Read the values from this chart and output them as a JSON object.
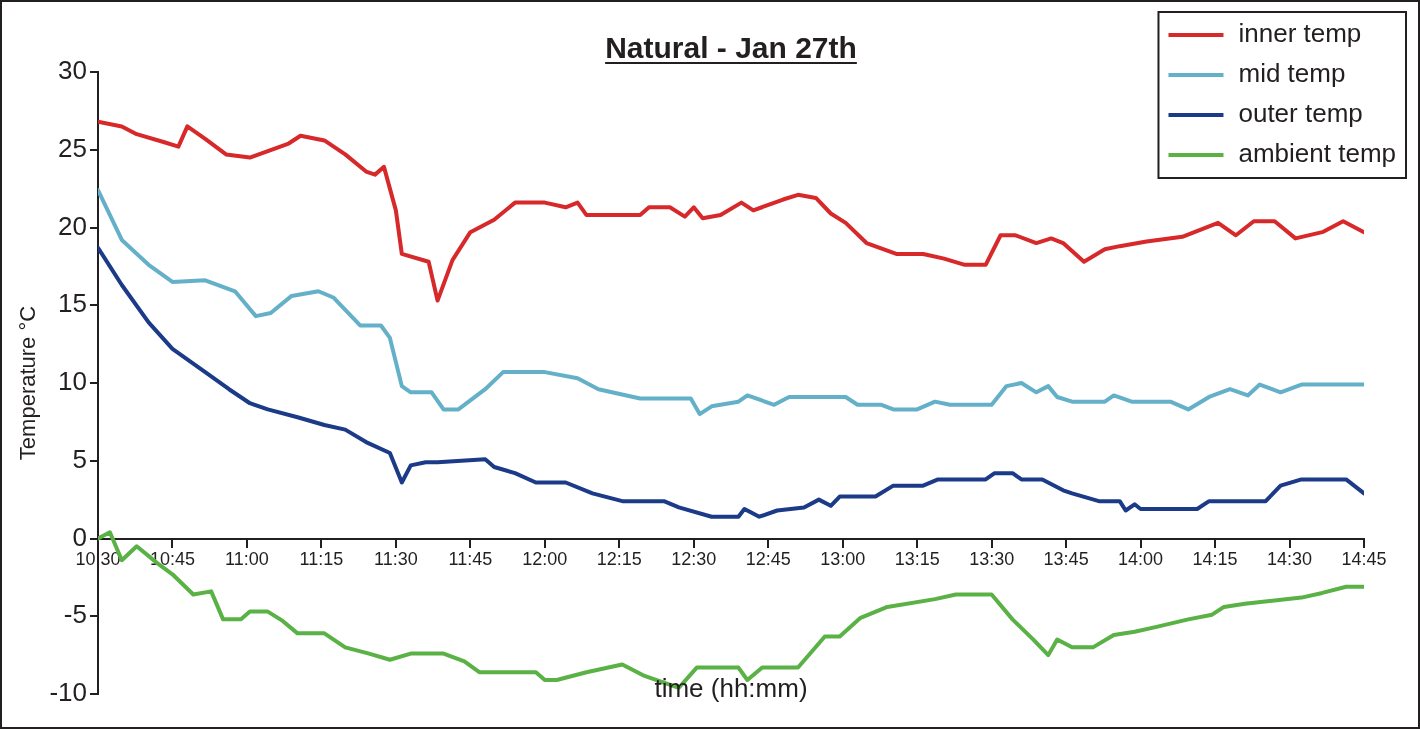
{
  "chart_data": {
    "type": "line",
    "title": "Natural - Jan 27th",
    "xlabel": "time (hh:mm)",
    "ylabel": "Temperature °C",
    "xlim": [
      10.5,
      14.75
    ],
    "xticks": [
      {
        "value": 10.5,
        "label": "10:30"
      },
      {
        "value": 10.75,
        "label": "10:45"
      },
      {
        "value": 11,
        "label": "11:00"
      },
      {
        "value": 11.25,
        "label": "11:15"
      },
      {
        "value": 11.5,
        "label": "11:30"
      },
      {
        "value": 11.75,
        "label": "11:45"
      },
      {
        "value": 12,
        "label": "12:00"
      },
      {
        "value": 12.25,
        "label": "12:15"
      },
      {
        "value": 12.5,
        "label": "12:30"
      },
      {
        "value": 12.75,
        "label": "12:45"
      },
      {
        "value": 13,
        "label": "13:00"
      },
      {
        "value": 13.25,
        "label": "13:15"
      },
      {
        "value": 13.5,
        "label": "13:30"
      },
      {
        "value": 13.75,
        "label": "13:45"
      },
      {
        "value": 14,
        "label": "14:00"
      },
      {
        "value": 14.25,
        "label": "14:15"
      },
      {
        "value": 14.5,
        "label": "14:30"
      },
      {
        "value": 14.75,
        "label": "14:45"
      }
    ],
    "ylim": [
      -10,
      30
    ],
    "yticks": [
      -10,
      -5,
      0,
      5,
      10,
      15,
      20,
      25,
      30
    ],
    "grid": false,
    "legend": "top right",
    "marker": "none",
    "line_style": "solid",
    "series": [
      {
        "name": "inner temp",
        "color": "#d7282a",
        "x": [
          10.5,
          10.58,
          10.63,
          10.72,
          10.77,
          10.8,
          10.86,
          10.93,
          11.01,
          11.14,
          11.18,
          11.26,
          11.33,
          11.4,
          11.43,
          11.46,
          11.5,
          11.52,
          11.61,
          11.64,
          11.69,
          11.75,
          11.83,
          11.9,
          12.0,
          12.07,
          12.11,
          12.14,
          12.32,
          12.35,
          12.42,
          12.47,
          12.5,
          12.53,
          12.59,
          12.66,
          12.7,
          12.8,
          12.85,
          12.91,
          12.96,
          13.01,
          13.08,
          13.18,
          13.27,
          13.34,
          13.41,
          13.48,
          13.53,
          13.58,
          13.65,
          13.7,
          13.74,
          13.81,
          13.88,
          13.93,
          14.02,
          14.14,
          14.26,
          14.32,
          14.38,
          14.45,
          14.52,
          14.61,
          14.68,
          14.75
        ],
        "values": [
          26.8,
          26.5,
          26.0,
          25.5,
          25.2,
          26.5,
          25.7,
          24.7,
          24.5,
          25.4,
          25.9,
          25.6,
          24.7,
          23.6,
          23.4,
          23.9,
          21.1,
          18.3,
          17.8,
          15.3,
          17.9,
          19.7,
          20.5,
          21.6,
          21.6,
          21.3,
          21.6,
          20.8,
          20.8,
          21.3,
          21.3,
          20.7,
          21.3,
          20.6,
          20.8,
          21.6,
          21.1,
          21.8,
          22.1,
          21.9,
          20.9,
          20.3,
          19.0,
          18.3,
          18.3,
          18.0,
          17.6,
          17.6,
          19.5,
          19.5,
          19.0,
          19.3,
          19.0,
          17.8,
          18.6,
          18.8,
          19.1,
          19.4,
          20.3,
          19.5,
          20.4,
          20.4,
          19.3,
          19.7,
          20.4,
          19.7
        ]
      },
      {
        "name": "mid temp",
        "color": "#65b0c9",
        "x": [
          10.5,
          10.58,
          10.67,
          10.75,
          10.86,
          10.96,
          11.03,
          11.08,
          11.15,
          11.24,
          11.29,
          11.38,
          11.45,
          11.48,
          11.52,
          11.55,
          11.62,
          11.66,
          11.71,
          11.8,
          11.86,
          12.0,
          12.11,
          12.18,
          12.32,
          12.49,
          12.52,
          12.56,
          12.65,
          12.68,
          12.77,
          12.82,
          13.01,
          13.05,
          13.13,
          13.17,
          13.25,
          13.31,
          13.36,
          13.5,
          13.55,
          13.6,
          13.65,
          13.69,
          13.72,
          13.77,
          13.88,
          13.91,
          13.97,
          14.1,
          14.16,
          14.23,
          14.3,
          14.36,
          14.4,
          14.47,
          14.54,
          14.64,
          14.75
        ],
        "values": [
          22.4,
          19.2,
          17.6,
          16.5,
          16.6,
          15.9,
          14.3,
          14.5,
          15.6,
          15.9,
          15.5,
          13.7,
          13.7,
          12.9,
          9.8,
          9.4,
          9.4,
          8.3,
          8.3,
          9.6,
          10.7,
          10.7,
          10.3,
          9.6,
          9.0,
          9.0,
          8.0,
          8.5,
          8.8,
          9.2,
          8.6,
          9.1,
          9.1,
          8.6,
          8.6,
          8.3,
          8.3,
          8.8,
          8.6,
          8.6,
          9.8,
          10.0,
          9.4,
          9.8,
          9.1,
          8.8,
          8.8,
          9.2,
          8.8,
          8.8,
          8.3,
          9.1,
          9.6,
          9.2,
          9.9,
          9.4,
          9.9,
          9.9,
          9.9
        ]
      },
      {
        "name": "outer temp",
        "color": "#1b3a87",
        "x": [
          10.5,
          10.58,
          10.67,
          10.75,
          10.86,
          10.94,
          11.01,
          11.07,
          11.17,
          11.26,
          11.33,
          11.4,
          11.48,
          11.52,
          11.55,
          11.6,
          11.64,
          11.8,
          11.83,
          11.9,
          11.97,
          12.07,
          12.16,
          12.26,
          12.4,
          12.45,
          12.56,
          12.65,
          12.67,
          12.72,
          12.78,
          12.87,
          12.92,
          12.96,
          12.99,
          13.11,
          13.17,
          13.27,
          13.32,
          13.48,
          13.51,
          13.57,
          13.6,
          13.67,
          13.74,
          13.77,
          13.86,
          13.93,
          13.95,
          13.98,
          14.0,
          14.19,
          14.23,
          14.42,
          14.47,
          14.54,
          14.69,
          14.75
        ],
        "values": [
          18.7,
          16.3,
          13.9,
          12.2,
          10.7,
          9.6,
          8.7,
          8.3,
          7.8,
          7.3,
          7.0,
          6.2,
          5.5,
          3.6,
          4.7,
          4.9,
          4.9,
          5.1,
          4.6,
          4.2,
          3.6,
          3.6,
          2.9,
          2.4,
          2.4,
          2.0,
          1.4,
          1.4,
          1.9,
          1.4,
          1.8,
          2.0,
          2.5,
          2.1,
          2.7,
          2.7,
          3.4,
          3.4,
          3.8,
          3.8,
          4.2,
          4.2,
          3.8,
          3.8,
          3.1,
          2.9,
          2.4,
          2.4,
          1.8,
          2.2,
          1.9,
          1.9,
          2.4,
          2.4,
          3.4,
          3.8,
          3.8,
          2.9
        ]
      },
      {
        "name": "ambient temp",
        "color": "#5ab146",
        "x": [
          10.5,
          10.54,
          10.58,
          10.63,
          10.7,
          10.75,
          10.82,
          10.88,
          10.92,
          10.98,
          11.01,
          11.07,
          11.12,
          11.17,
          11.26,
          11.33,
          11.41,
          11.48,
          11.55,
          11.66,
          11.73,
          11.78,
          11.97,
          12.0,
          12.04,
          12.14,
          12.26,
          12.33,
          12.45,
          12.51,
          12.65,
          12.68,
          12.73,
          12.85,
          12.94,
          12.99,
          13.06,
          13.15,
          13.31,
          13.38,
          13.5,
          13.57,
          13.64,
          13.69,
          13.72,
          13.77,
          13.84,
          13.91,
          13.98,
          14.05,
          14.16,
          14.24,
          14.28,
          14.35,
          14.54,
          14.61,
          14.69,
          14.75
        ],
        "values": [
          0.0,
          0.4,
          -1.4,
          -0.5,
          -1.6,
          -2.3,
          -3.6,
          -3.4,
          -5.2,
          -5.2,
          -4.7,
          -4.7,
          -5.3,
          -6.1,
          -6.1,
          -7.0,
          -7.4,
          -7.8,
          -7.4,
          -7.4,
          -7.9,
          -8.6,
          -8.6,
          -9.1,
          -9.1,
          -8.6,
          -8.1,
          -8.8,
          -9.6,
          -8.3,
          -8.3,
          -9.1,
          -8.3,
          -8.3,
          -6.3,
          -6.3,
          -5.1,
          -4.4,
          -3.9,
          -3.6,
          -3.6,
          -5.2,
          -6.5,
          -7.5,
          -6.5,
          -7.0,
          -7.0,
          -6.2,
          -6.0,
          -5.7,
          -5.2,
          -4.9,
          -4.4,
          -4.2,
          -3.8,
          -3.5,
          -3.1,
          -3.1
        ]
      }
    ]
  }
}
